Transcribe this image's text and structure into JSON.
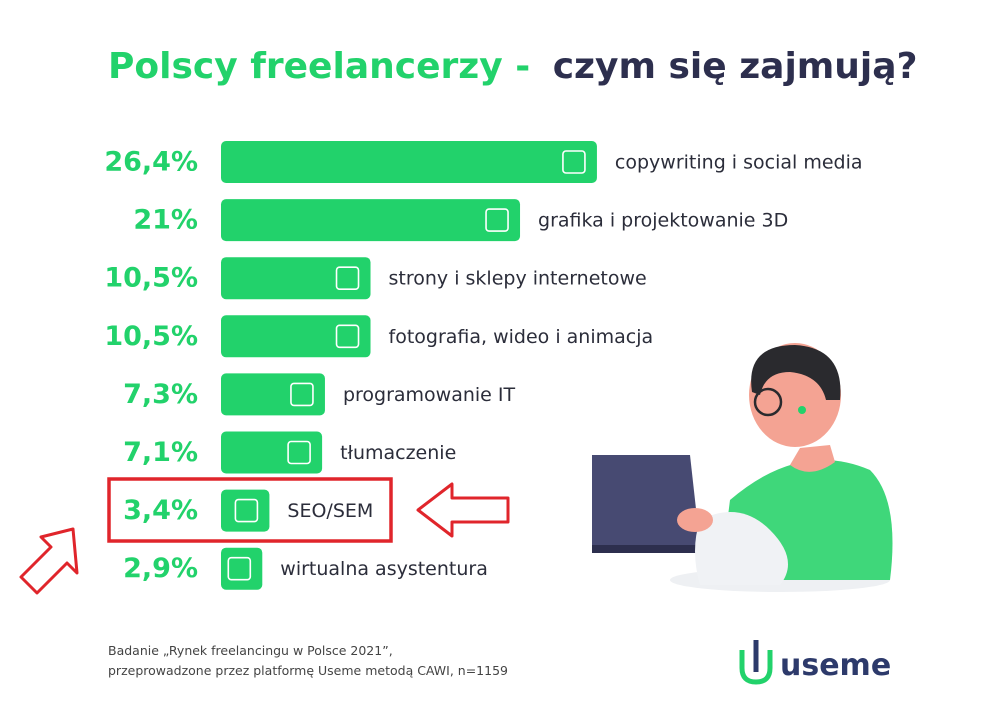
{
  "chart_data": {
    "type": "bar",
    "title": [
      "Polscy freelancerzy -",
      "czym się zajmują?"
    ],
    "categories": [
      "copywriting i social media",
      "grafika i projektowanie 3D",
      "strony i sklepy internetowe",
      "fotografia, wideo i animacja",
      "programowanie IT",
      "tłumaczenie",
      "SEO/SEM",
      "wirtualna asystentura"
    ],
    "values": [
      26.4,
      21,
      10.5,
      10.5,
      7.3,
      7.1,
      3.4,
      2.9
    ],
    "value_labels": [
      "26,4%",
      "21%",
      "10,5%",
      "10,5%",
      "7,3%",
      "7,1%",
      "3,4%",
      "2,9%"
    ],
    "color": "#22d26b",
    "source": [
      "Badanie „Rynek freelancingu w Polsce 2021”,",
      "przeprowadzone przez platformę Useme metodą CAWI, n=1159"
    ],
    "brand": "useme"
  }
}
